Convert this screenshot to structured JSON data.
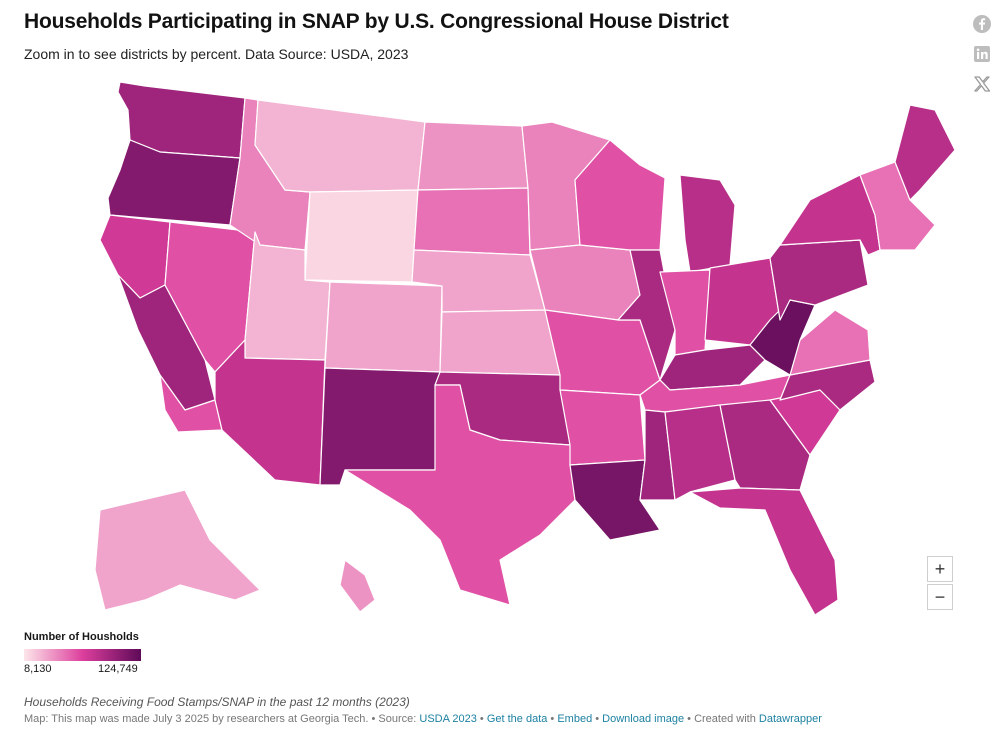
{
  "header": {
    "title": "Households Participating in SNAP by U.S. Congressional House District",
    "subtitle": "Zoom in to see districts by percent. Data Source: USDA, 2023"
  },
  "share": [
    {
      "name": "facebook-icon"
    },
    {
      "name": "linkedin-icon"
    },
    {
      "name": "x-icon"
    }
  ],
  "zoom": {
    "in_label": "+",
    "out_label": "−"
  },
  "legend": {
    "title": "Number of Housholds",
    "min_label": "8,130",
    "max_label": "124,749",
    "min_value": 8130,
    "max_value": 124749,
    "color_low": "#fde6ea",
    "color_mid": "#dd3f9d",
    "color_high": "#5e0a58"
  },
  "notes": "Households Receiving Food Stamps/SNAP in the past 12 months (2023)",
  "footer": {
    "lead": "Map: This map was made July 3 2025 by researchers at Georgia Tech. • Source: ",
    "source_link": "USDA 2023",
    "sep1": " • ",
    "get_data": "Get the data",
    "sep2": " • ",
    "embed": "Embed",
    "sep3": " • ",
    "download": "Download image",
    "sep4": " • Created with ",
    "datawrapper": "Datawrapper"
  },
  "map_regions": [
    {
      "name": "washington",
      "level": 0.75
    },
    {
      "name": "oregon",
      "level": 0.85
    },
    {
      "name": "california-north",
      "level": 0.55
    },
    {
      "name": "california-central",
      "level": 0.75
    },
    {
      "name": "california-south",
      "level": 0.45
    },
    {
      "name": "nevada",
      "level": 0.45
    },
    {
      "name": "idaho",
      "level": 0.3
    },
    {
      "name": "montana",
      "level": 0.15
    },
    {
      "name": "wyoming",
      "level": 0.05
    },
    {
      "name": "utah",
      "level": 0.15
    },
    {
      "name": "arizona",
      "level": 0.6
    },
    {
      "name": "colorado",
      "level": 0.2
    },
    {
      "name": "new-mexico",
      "level": 0.85
    },
    {
      "name": "north-dakota",
      "level": 0.25
    },
    {
      "name": "south-dakota",
      "level": 0.35
    },
    {
      "name": "nebraska",
      "level": 0.2
    },
    {
      "name": "kansas",
      "level": 0.2
    },
    {
      "name": "oklahoma",
      "level": 0.7
    },
    {
      "name": "texas",
      "level": 0.45
    },
    {
      "name": "minnesota",
      "level": 0.3
    },
    {
      "name": "iowa",
      "level": 0.3
    },
    {
      "name": "missouri",
      "level": 0.45
    },
    {
      "name": "arkansas",
      "level": 0.45
    },
    {
      "name": "louisiana",
      "level": 0.9
    },
    {
      "name": "wisconsin",
      "level": 0.45
    },
    {
      "name": "illinois",
      "level": 0.7
    },
    {
      "name": "michigan",
      "level": 0.65
    },
    {
      "name": "indiana",
      "level": 0.45
    },
    {
      "name": "ohio",
      "level": 0.6
    },
    {
      "name": "kentucky",
      "level": 0.75
    },
    {
      "name": "tennessee",
      "level": 0.45
    },
    {
      "name": "mississippi",
      "level": 0.75
    },
    {
      "name": "alabama",
      "level": 0.65
    },
    {
      "name": "georgia",
      "level": 0.7
    },
    {
      "name": "florida",
      "level": 0.6
    },
    {
      "name": "south-carolina",
      "level": 0.55
    },
    {
      "name": "north-carolina",
      "level": 0.7
    },
    {
      "name": "virginia",
      "level": 0.35
    },
    {
      "name": "west-virginia",
      "level": 0.95
    },
    {
      "name": "pennsylvania",
      "level": 0.7
    },
    {
      "name": "new-york",
      "level": 0.6
    },
    {
      "name": "new-england",
      "level": 0.35
    },
    {
      "name": "maine",
      "level": 0.65
    },
    {
      "name": "alaska",
      "level": 0.2
    },
    {
      "name": "hawaii",
      "level": 0.25
    }
  ]
}
